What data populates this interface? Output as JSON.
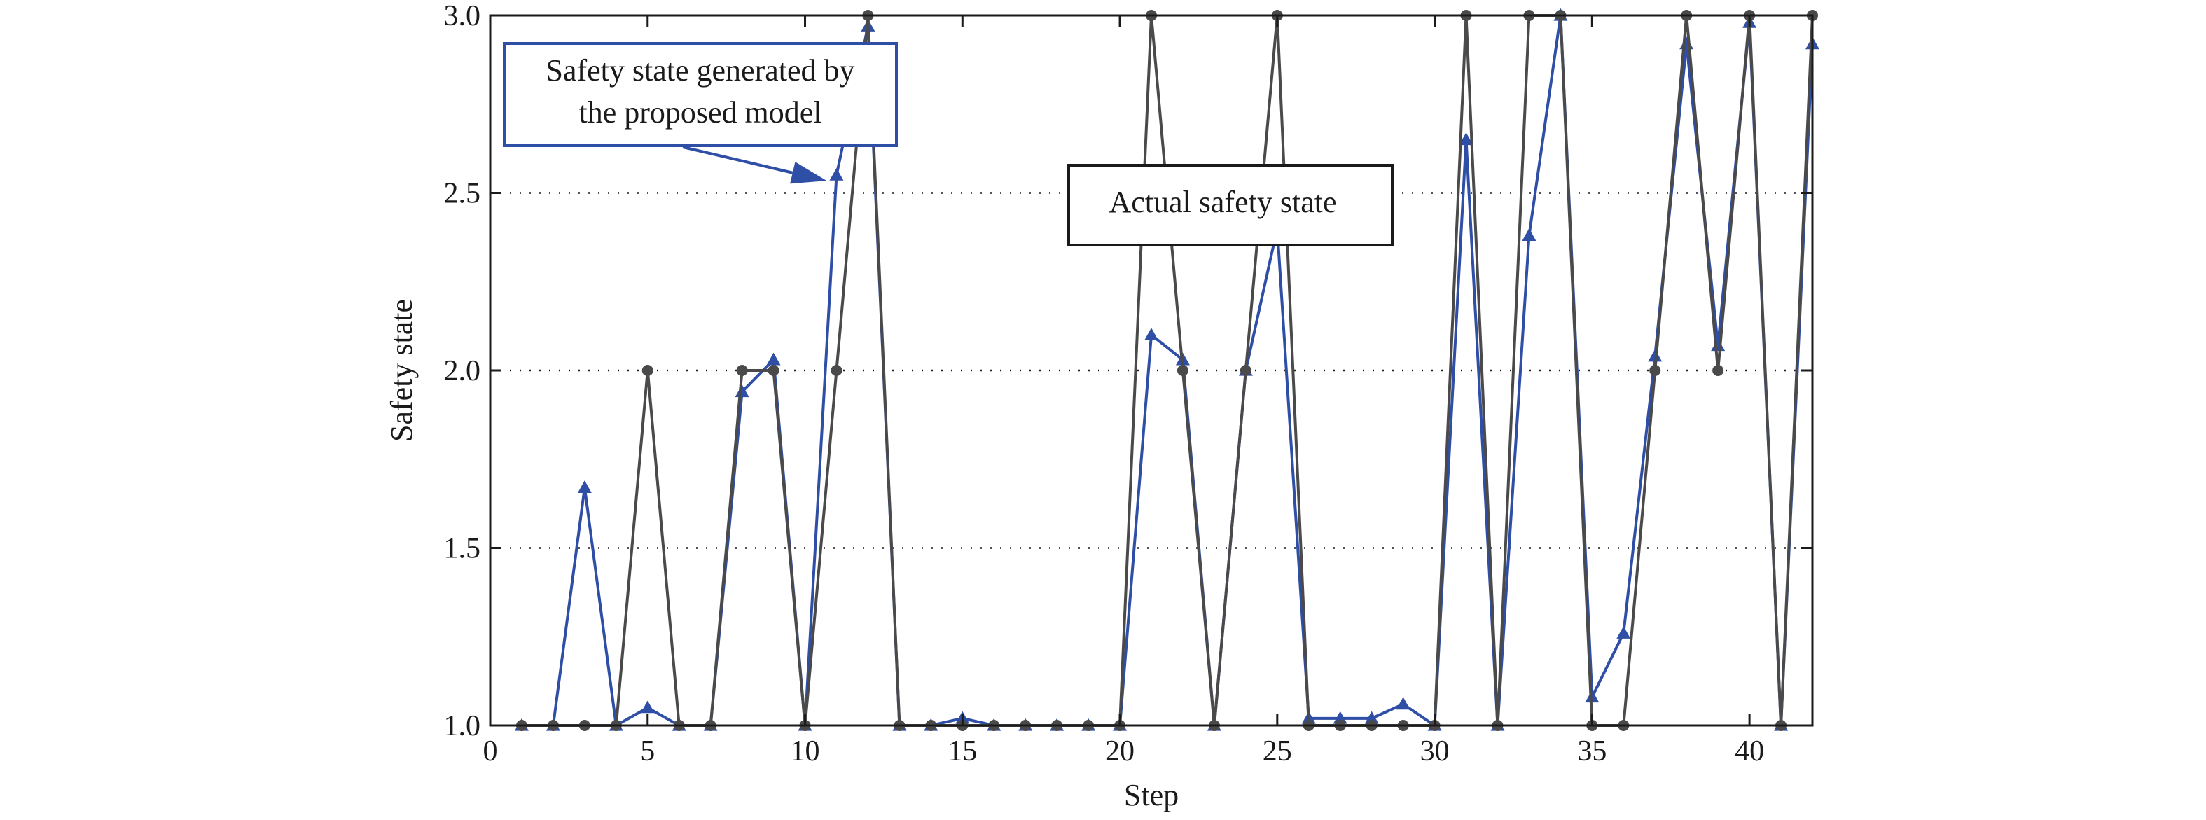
{
  "chart_data": {
    "type": "line",
    "xlabel": "Step",
    "ylabel": "Safety state",
    "xlim": [
      0,
      42
    ],
    "ylim": [
      1.0,
      3.0
    ],
    "x_ticks": [
      0,
      5,
      10,
      15,
      20,
      25,
      30,
      35,
      40
    ],
    "y_ticks": [
      "1.0",
      "1.5",
      "2.0",
      "2.5",
      "3.0"
    ],
    "grid": "horizontal dotted",
    "x": [
      1,
      2,
      3,
      4,
      5,
      6,
      7,
      8,
      9,
      10,
      11,
      12,
      13,
      14,
      15,
      16,
      17,
      18,
      19,
      20,
      21,
      22,
      23,
      24,
      25,
      26,
      27,
      28,
      29,
      30,
      31,
      32,
      33,
      34,
      35,
      36,
      37,
      38,
      39,
      40,
      41,
      42
    ],
    "series": [
      {
        "name": "Actual safety state",
        "color": "#4a4a4a",
        "marker": "circle",
        "values": [
          1,
          1,
          1,
          1,
          2,
          1,
          1,
          2,
          2,
          1,
          2,
          3,
          1,
          1,
          1,
          1,
          1,
          1,
          1,
          1,
          3,
          2,
          1,
          2,
          3,
          1,
          1,
          1,
          1,
          1,
          3,
          1,
          3,
          3,
          1,
          1,
          2,
          3,
          2,
          3,
          1,
          3
        ]
      },
      {
        "name": "Safety state generated by the proposed model",
        "color": "#2f4ea6",
        "marker": "triangle",
        "values": [
          1,
          1,
          1.67,
          1,
          1.05,
          1,
          1,
          1.94,
          2.03,
          1,
          2.55,
          2.97,
          1,
          1,
          1.02,
          1,
          1,
          1,
          1,
          1,
          2.1,
          2.03,
          1,
          2,
          2.4,
          1.02,
          1.02,
          1.02,
          1.06,
          1,
          2.65,
          1,
          2.38,
          3,
          1.08,
          1.26,
          2.04,
          2.92,
          2.07,
          2.98,
          1,
          2.92
        ]
      }
    ],
    "annotations": [
      {
        "text_lines": [
          "Safety state generated by",
          "the proposed model"
        ]
      },
      {
        "text_lines": [
          "Actual safety state"
        ]
      }
    ]
  }
}
